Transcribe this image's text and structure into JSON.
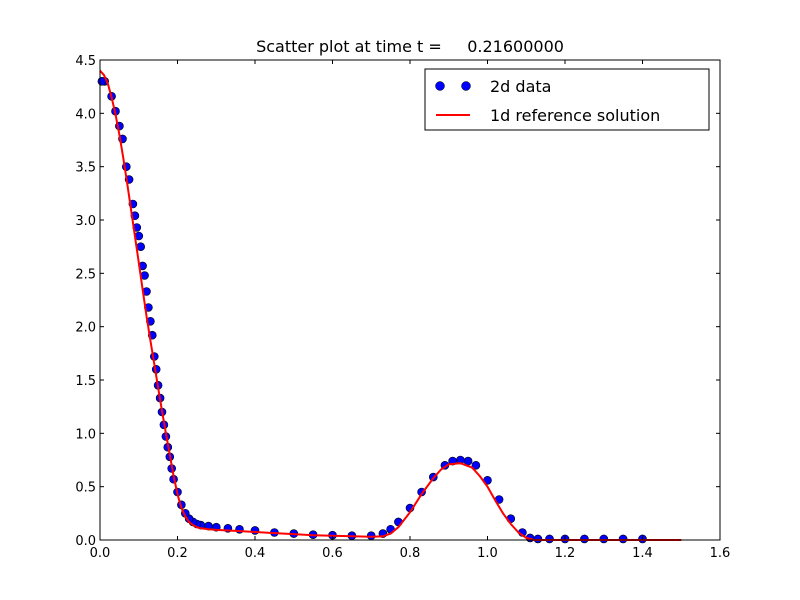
{
  "chart_data": {
    "type": "scatter",
    "title": "Scatter plot at time t =     0.21600000",
    "xlabel": "",
    "ylabel": "",
    "xlim": [
      0.0,
      1.6
    ],
    "ylim": [
      0.0,
      4.5
    ],
    "xticks": [
      "0.0",
      "0.2",
      "0.4",
      "0.6",
      "0.8",
      "1.0",
      "1.2",
      "1.4",
      "1.6"
    ],
    "yticks": [
      "0.0",
      "0.5",
      "1.0",
      "1.5",
      "2.0",
      "2.5",
      "3.0",
      "3.5",
      "4.0",
      "4.5"
    ],
    "legend_position": "top-right",
    "series": [
      {
        "name": "2d data",
        "kind": "scatter",
        "color": "#0000ff",
        "edge_color": "#000000",
        "x": [
          0.005,
          0.012,
          0.03,
          0.04,
          0.05,
          0.058,
          0.068,
          0.075,
          0.085,
          0.09,
          0.095,
          0.1,
          0.105,
          0.11,
          0.115,
          0.12,
          0.125,
          0.13,
          0.135,
          0.14,
          0.145,
          0.15,
          0.155,
          0.16,
          0.165,
          0.17,
          0.175,
          0.18,
          0.185,
          0.19,
          0.2,
          0.21,
          0.22,
          0.23,
          0.24,
          0.25,
          0.26,
          0.28,
          0.3,
          0.33,
          0.36,
          0.4,
          0.45,
          0.5,
          0.55,
          0.6,
          0.65,
          0.7,
          0.73,
          0.75,
          0.77,
          0.8,
          0.83,
          0.86,
          0.89,
          0.91,
          0.93,
          0.95,
          0.97,
          1.0,
          1.03,
          1.06,
          1.09,
          1.11,
          1.13,
          1.16,
          1.2,
          1.25,
          1.3,
          1.35,
          1.4
        ],
        "y": [
          4.3,
          4.3,
          4.16,
          4.02,
          3.88,
          3.76,
          3.5,
          3.38,
          3.15,
          3.04,
          2.93,
          2.85,
          2.75,
          2.57,
          2.48,
          2.33,
          2.18,
          2.05,
          1.92,
          1.72,
          1.6,
          1.45,
          1.33,
          1.2,
          1.08,
          0.97,
          0.87,
          0.78,
          0.67,
          0.57,
          0.45,
          0.33,
          0.25,
          0.2,
          0.17,
          0.15,
          0.14,
          0.13,
          0.12,
          0.11,
          0.1,
          0.09,
          0.07,
          0.06,
          0.05,
          0.045,
          0.04,
          0.04,
          0.06,
          0.1,
          0.17,
          0.3,
          0.45,
          0.59,
          0.7,
          0.74,
          0.75,
          0.74,
          0.7,
          0.56,
          0.38,
          0.2,
          0.07,
          0.02,
          0.01,
          0.01,
          0.01,
          0.01,
          0.01,
          0.01,
          0.01
        ]
      },
      {
        "name": "1d reference solution",
        "kind": "line",
        "color": "#ff0000",
        "x": [
          0.0,
          0.01,
          0.02,
          0.03,
          0.04,
          0.05,
          0.06,
          0.07,
          0.08,
          0.09,
          0.1,
          0.11,
          0.12,
          0.13,
          0.14,
          0.15,
          0.16,
          0.17,
          0.18,
          0.19,
          0.2,
          0.21,
          0.22,
          0.23,
          0.24,
          0.25,
          0.26,
          0.28,
          0.3,
          0.35,
          0.4,
          0.45,
          0.5,
          0.55,
          0.6,
          0.65,
          0.7,
          0.73,
          0.75,
          0.77,
          0.8,
          0.83,
          0.86,
          0.88,
          0.9,
          0.93,
          0.96,
          0.98,
          1.0,
          1.02,
          1.04,
          1.06,
          1.08,
          1.1,
          1.12,
          1.2,
          1.3,
          1.4,
          1.5
        ],
        "y": [
          4.4,
          4.36,
          4.28,
          4.15,
          3.99,
          3.8,
          3.58,
          3.35,
          3.1,
          2.85,
          2.6,
          2.35,
          2.1,
          1.87,
          1.65,
          1.43,
          1.21,
          1.0,
          0.8,
          0.6,
          0.43,
          0.3,
          0.22,
          0.17,
          0.14,
          0.12,
          0.11,
          0.1,
          0.095,
          0.085,
          0.075,
          0.065,
          0.055,
          0.045,
          0.04,
          0.035,
          0.03,
          0.035,
          0.06,
          0.12,
          0.26,
          0.43,
          0.58,
          0.66,
          0.71,
          0.72,
          0.68,
          0.6,
          0.5,
          0.37,
          0.25,
          0.15,
          0.07,
          0.02,
          0.0,
          0.0,
          0.0,
          0.0,
          0.0
        ]
      }
    ]
  }
}
